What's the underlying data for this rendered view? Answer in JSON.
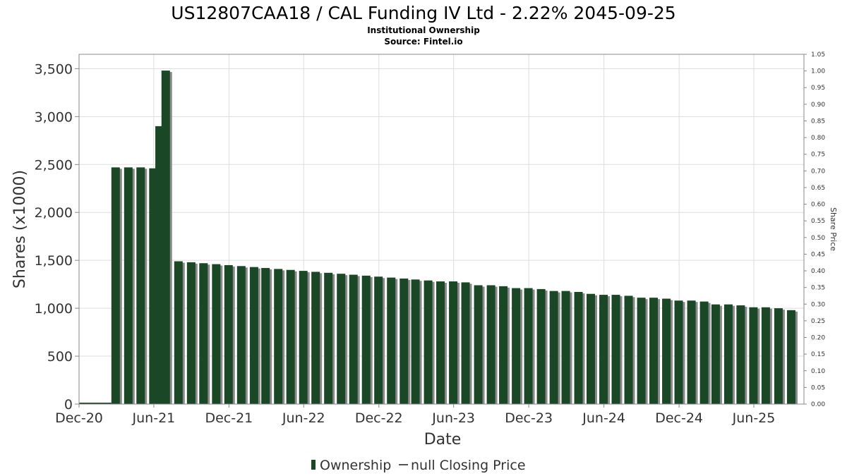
{
  "header": {
    "title": "US12807CAA18 / CAL Funding IV Ltd - 2.22% 2045-09-25",
    "subtitle": "Institutional Ownership",
    "source": "Source: Fintel.io"
  },
  "legend": {
    "ownership_label": "Ownership",
    "price_label": "null Closing Price"
  },
  "colors": {
    "bar": "#1a4726",
    "bar_shadow": "#8a8a8a",
    "grid": "#dddddd",
    "plot_border": "#888888"
  },
  "chart_data": {
    "type": "bar",
    "title": "US12807CAA18 / CAL Funding IV Ltd - 2.22% 2045-09-25",
    "subtitle": "Institutional Ownership",
    "xlabel": "Date",
    "ylabel": "Shares (x1000)",
    "y2label": "Share Price",
    "xlim": [
      "2020-12-01",
      "2025-10-01"
    ],
    "ylim": [
      0,
      3650
    ],
    "y2lim": [
      0.0,
      1.05
    ],
    "x_ticks": [
      {
        "date": "2020-12-01",
        "label": "Dec-20"
      },
      {
        "date": "2021-06-01",
        "label": "Jun-21"
      },
      {
        "date": "2021-12-01",
        "label": "Dec-21"
      },
      {
        "date": "2022-06-01",
        "label": "Jun-22"
      },
      {
        "date": "2022-12-01",
        "label": "Dec-22"
      },
      {
        "date": "2023-06-01",
        "label": "Jun-23"
      },
      {
        "date": "2023-12-01",
        "label": "Dec-23"
      },
      {
        "date": "2024-06-01",
        "label": "Jun-24"
      },
      {
        "date": "2024-12-01",
        "label": "Dec-24"
      },
      {
        "date": "2025-06-01",
        "label": "Jun-25"
      }
    ],
    "y_ticks": [
      {
        "value": 0,
        "label": "0"
      },
      {
        "value": 500,
        "label": "500"
      },
      {
        "value": 1000,
        "label": "1,000"
      },
      {
        "value": 1500,
        "label": "1,500"
      },
      {
        "value": 2000,
        "label": "2,000"
      },
      {
        "value": 2500,
        "label": "2,500"
      },
      {
        "value": 3000,
        "label": "3,000"
      },
      {
        "value": 3500,
        "label": "3,500"
      }
    ],
    "y2_ticks": [
      "0.00",
      "0.05",
      "0.10",
      "0.15",
      "0.20",
      "0.25",
      "0.30",
      "0.35",
      "0.40",
      "0.45",
      "0.50",
      "0.55",
      "0.60",
      "0.65",
      "0.70",
      "0.75",
      "0.80",
      "0.85",
      "0.90",
      "0.95",
      "1.00",
      "1.05"
    ],
    "grid": true,
    "legend_position": "bottom",
    "series": [
      {
        "name": "Ownership",
        "x": [
          "2021-02-28",
          "2021-03-31",
          "2021-04-30",
          "2021-05-31",
          "2021-06-15",
          "2021-06-30",
          "2021-07-31",
          "2021-08-31",
          "2021-09-30",
          "2021-10-31",
          "2021-11-30",
          "2021-12-31",
          "2022-01-31",
          "2022-02-28",
          "2022-03-31",
          "2022-04-30",
          "2022-05-31",
          "2022-06-30",
          "2022-07-31",
          "2022-08-31",
          "2022-09-30",
          "2022-10-31",
          "2022-11-30",
          "2022-12-31",
          "2023-01-31",
          "2023-02-28",
          "2023-03-31",
          "2023-04-30",
          "2023-05-31",
          "2023-06-30",
          "2023-07-31",
          "2023-08-31",
          "2023-09-30",
          "2023-10-31",
          "2023-11-30",
          "2023-12-31",
          "2024-01-31",
          "2024-02-29",
          "2024-03-31",
          "2024-04-30",
          "2024-05-31",
          "2024-06-30",
          "2024-07-31",
          "2024-08-31",
          "2024-09-30",
          "2024-10-31",
          "2024-11-30",
          "2024-12-31",
          "2025-01-31",
          "2025-02-28",
          "2025-03-31",
          "2025-04-30",
          "2025-05-31",
          "2025-06-30",
          "2025-07-31",
          "2025-08-31"
        ],
        "values": [
          2470,
          2470,
          2470,
          2460,
          2900,
          3480,
          1490,
          1480,
          1470,
          1460,
          1450,
          1440,
          1430,
          1420,
          1410,
          1400,
          1390,
          1380,
          1370,
          1360,
          1350,
          1340,
          1330,
          1320,
          1310,
          1300,
          1290,
          1280,
          1280,
          1270,
          1240,
          1240,
          1230,
          1210,
          1210,
          1200,
          1180,
          1180,
          1170,
          1150,
          1140,
          1140,
          1130,
          1110,
          1110,
          1100,
          1080,
          1080,
          1070,
          1040,
          1040,
          1030,
          1010,
          1010,
          1000,
          980
        ]
      }
    ]
  }
}
